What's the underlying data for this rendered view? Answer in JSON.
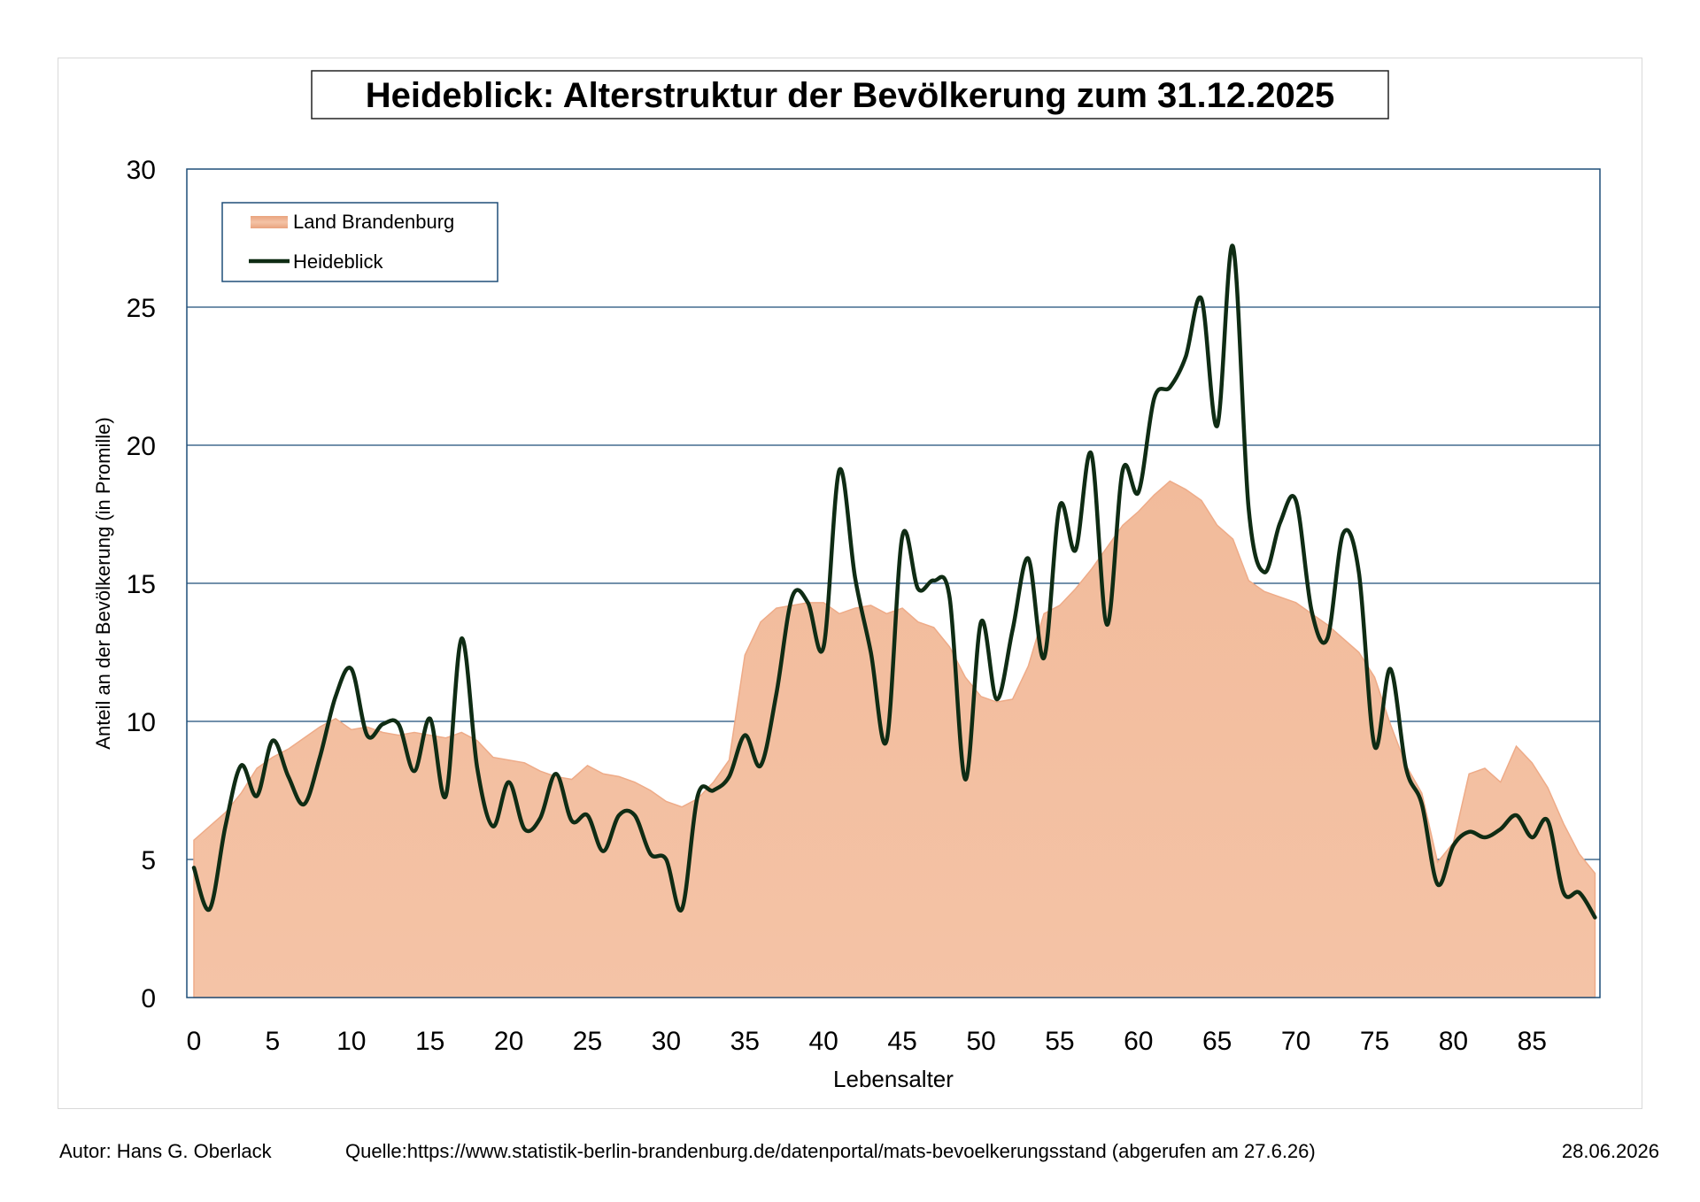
{
  "chart_data": {
    "type": "area",
    "title": "Heideblick: Alterstruktur der Bevölkerung zum 31.12.2025",
    "xlabel": "Lebensalter",
    "ylabel": "Anteil an der Bevölkerung (in Promille)",
    "xlim": [
      0,
      89
    ],
    "ylim": [
      0,
      30
    ],
    "x_ticks": [
      "0",
      "5",
      "10",
      "15",
      "20",
      "25",
      "30",
      "35",
      "40",
      "45",
      "50",
      "55",
      "60",
      "65",
      "70",
      "75",
      "80",
      "85"
    ],
    "y_ticks": [
      "0",
      "5",
      "10",
      "15",
      "20",
      "25",
      "30"
    ],
    "grid": "horizontal",
    "legend_position": "top-left",
    "x": [
      0,
      1,
      2,
      3,
      4,
      5,
      6,
      7,
      8,
      9,
      10,
      11,
      12,
      13,
      14,
      15,
      16,
      17,
      18,
      19,
      20,
      21,
      22,
      23,
      24,
      25,
      26,
      27,
      28,
      29,
      30,
      31,
      32,
      33,
      34,
      35,
      36,
      37,
      38,
      39,
      40,
      41,
      42,
      43,
      44,
      45,
      46,
      47,
      48,
      49,
      50,
      51,
      52,
      53,
      54,
      55,
      56,
      57,
      58,
      59,
      60,
      61,
      62,
      63,
      64,
      65,
      66,
      67,
      68,
      69,
      70,
      71,
      72,
      73,
      74,
      75,
      76,
      77,
      78,
      79,
      80,
      81,
      82,
      83,
      84,
      85,
      86,
      87,
      88,
      89
    ],
    "series": [
      {
        "name": "Land Brandenburg",
        "type": "area",
        "color": "#f4c3a6",
        "values": [
          5.7,
          6.2,
          6.7,
          7.4,
          8.3,
          8.7,
          9.0,
          9.4,
          9.8,
          10.1,
          9.7,
          9.8,
          9.6,
          9.5,
          9.6,
          9.5,
          9.4,
          9.6,
          9.3,
          8.7,
          8.6,
          8.5,
          8.2,
          8.0,
          7.9,
          8.4,
          8.1,
          8.0,
          7.8,
          7.5,
          7.1,
          6.9,
          7.2,
          7.8,
          8.6,
          12.4,
          13.6,
          14.1,
          14.2,
          14.3,
          14.3,
          13.9,
          14.1,
          14.2,
          13.9,
          14.1,
          13.6,
          13.4,
          12.7,
          11.6,
          10.9,
          10.7,
          10.8,
          12.0,
          13.9,
          14.2,
          14.8,
          15.5,
          16.3,
          17.1,
          17.6,
          18.2,
          18.7,
          18.4,
          18.0,
          17.1,
          16.6,
          15.1,
          14.7,
          14.5,
          14.3,
          13.9,
          13.5,
          13.0,
          12.5,
          11.6,
          9.9,
          8.4,
          7.4,
          4.9,
          5.6,
          8.1,
          8.3,
          7.8,
          9.1,
          8.5,
          7.6,
          6.3,
          5.2,
          4.5
        ]
      },
      {
        "name": "Heideblick",
        "type": "line",
        "color": "#0f2c14",
        "values": [
          4.7,
          3.2,
          6.2,
          8.4,
          7.3,
          9.3,
          8.0,
          7.0,
          8.7,
          10.9,
          11.9,
          9.5,
          9.9,
          9.9,
          8.2,
          10.1,
          7.3,
          13.0,
          8.3,
          6.2,
          7.8,
          6.1,
          6.5,
          8.1,
          6.4,
          6.6,
          5.3,
          6.6,
          6.6,
          5.2,
          5.0,
          3.2,
          7.3,
          7.5,
          8.0,
          9.5,
          8.4,
          11.0,
          14.5,
          14.3,
          12.7,
          19.1,
          15.2,
          12.5,
          9.3,
          16.7,
          14.8,
          15.1,
          14.5,
          7.9,
          13.6,
          10.8,
          13.3,
          15.9,
          12.3,
          17.8,
          16.2,
          19.7,
          13.5,
          19.1,
          18.3,
          21.7,
          22.1,
          23.2,
          25.3,
          20.7,
          27.2,
          17.7,
          15.4,
          17.2,
          18.0,
          14.0,
          13.0,
          16.8,
          15.4,
          9.1,
          11.9,
          8.3,
          7.0,
          4.1,
          5.5,
          6.0,
          5.8,
          6.1,
          6.6,
          5.8,
          6.4,
          3.8,
          3.8,
          2.9
        ]
      }
    ]
  },
  "footer": {
    "author": "Autor: Hans G. Oberlack",
    "source": "Quelle:https://www.statistik-berlin-brandenburg.de/datenportal/mats-bevoelkerungsstand (abgerufen am 27.6.26)",
    "date": "28.06.2026"
  }
}
